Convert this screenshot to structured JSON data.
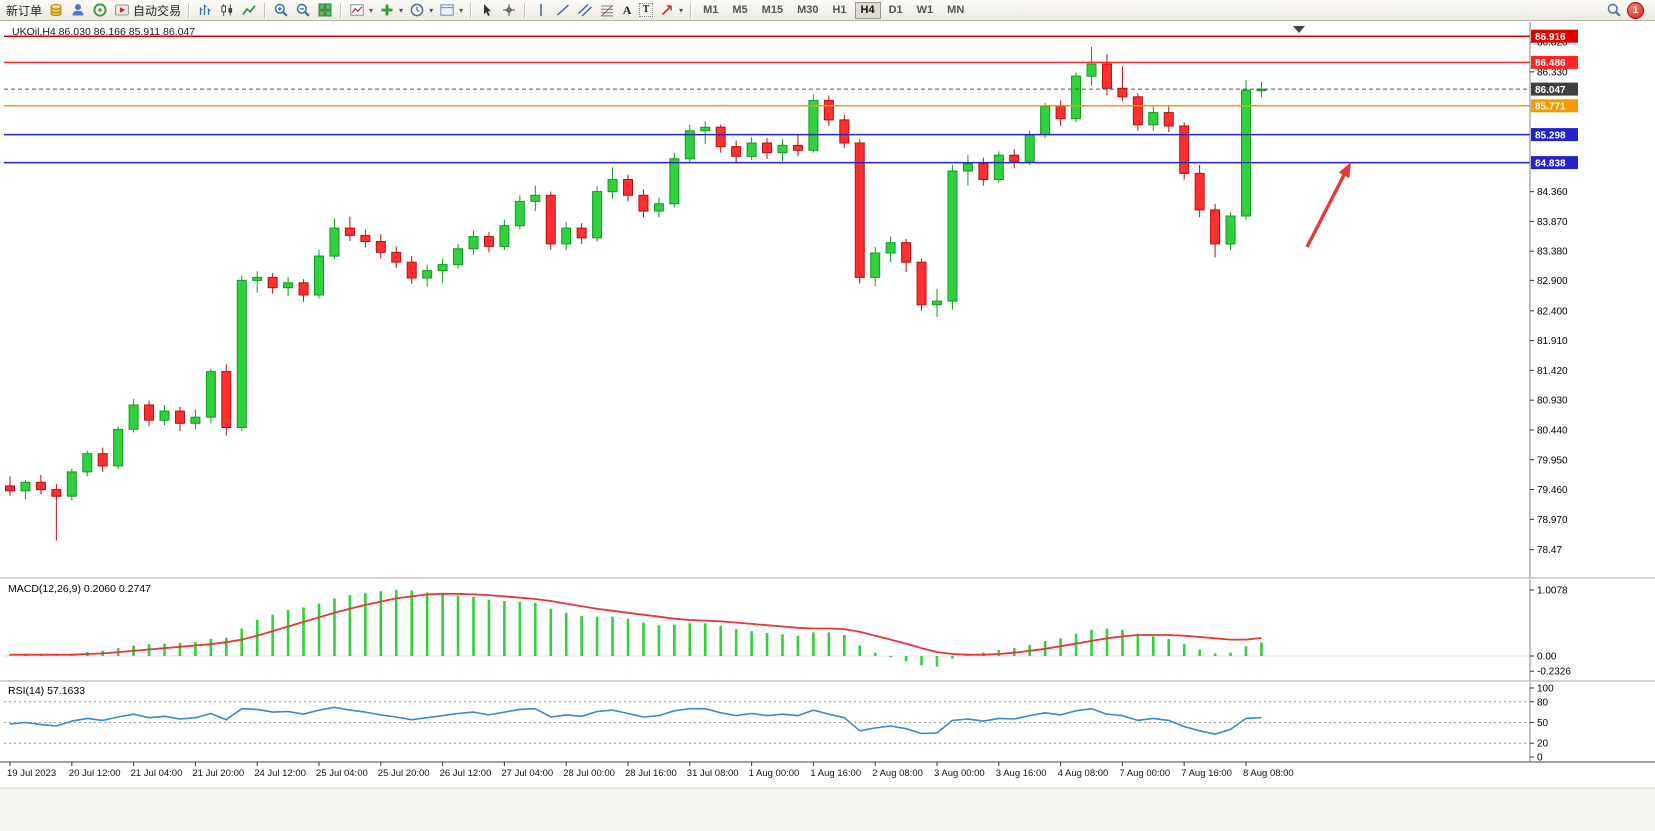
{
  "toolbar": {
    "new_order_label": "新订单",
    "auto_trading_label": "自动交易",
    "text_tool_a": "A",
    "text_tool_t": "T",
    "timeframes": [
      "M1",
      "M5",
      "M15",
      "M30",
      "H1",
      "H4",
      "D1",
      "W1",
      "MN"
    ],
    "active_timeframe": "H4",
    "notification_count": "1"
  },
  "icons": {
    "dropdown_caret": "▾",
    "names": [
      "coins-icon",
      "person-icon",
      "community-icon",
      "auto-trading-icon",
      "bar-chart-icon",
      "candlestick-chart-icon",
      "line-chart-icon",
      "zoom-in-icon",
      "zoom-out-icon",
      "tile-windows-icon",
      "new-chart-icon",
      "plus-icon",
      "clock-icon",
      "template-icon",
      "cursor-icon",
      "crosshair-icon",
      "vertical-line-icon",
      "trendline-icon",
      "channel-icon",
      "fibonacci-icon",
      "arrow-tool-icon",
      "search-icon",
      "notification-badge"
    ]
  },
  "colors": {
    "up": "#2fd13c",
    "up_border": "#129a22",
    "down": "#ff2f2f",
    "down_border": "#b31212",
    "macd_histogram": "#2fd13c",
    "macd_signal": "#e53935",
    "rsi_line": "#3b87d9"
  },
  "chart_data": {
    "type": "candlestick",
    "title": "UKOil,H4 86.030 86.166 85.911 86.047",
    "symbol": "UKOil",
    "period": "H4",
    "x_labels": [
      "19 Jul 2023",
      "20 Jul 12:00",
      "21 Jul 04:00",
      "21 Jul 20:00",
      "24 Jul 12:00",
      "25 Jul 04:00",
      "25 Jul 20:00",
      "26 Jul 12:00",
      "27 Jul 04:00",
      "28 Jul 00:00",
      "28 Jul 16:00",
      "31 Jul 08:00",
      "1 Aug 00:00",
      "1 Aug 16:00",
      "2 Aug 08:00",
      "3 Aug 00:00",
      "3 Aug 16:00",
      "4 Aug 08:00",
      "7 Aug 00:00",
      "7 Aug 16:00",
      "8 Aug 08:00"
    ],
    "bars_per_x_label": 4,
    "y_axis_ticks": [
      "86.820",
      "86.330",
      "84.360",
      "83.870",
      "83.380",
      "82.900",
      "82.400",
      "81.910",
      "81.420",
      "80.930",
      "80.440",
      "79.950",
      "79.460",
      "78.970",
      "78.47"
    ],
    "price_markers": [
      {
        "label": "86.916",
        "price": 86.916,
        "color": "#e00000",
        "current": false
      },
      {
        "label": "86.486",
        "price": 86.486,
        "color": "#ff2626",
        "current": false
      },
      {
        "label": "86.047",
        "price": 86.047,
        "color": "#3f3f3f",
        "current": true
      },
      {
        "label": "85.771",
        "price": 85.771,
        "color": "#f59b00",
        "current": false
      },
      {
        "label": "85.298",
        "price": 85.298,
        "color": "#2323cc",
        "current": false
      },
      {
        "label": "84.838",
        "price": 84.838,
        "color": "#2323cc",
        "current": false
      }
    ],
    "candles_ohlc": [
      [
        79.52,
        79.68,
        79.36,
        79.44
      ],
      [
        79.44,
        79.62,
        79.3,
        79.58
      ],
      [
        79.58,
        79.7,
        79.38,
        79.46
      ],
      [
        79.46,
        79.55,
        78.62,
        79.35
      ],
      [
        79.35,
        79.8,
        79.28,
        79.75
      ],
      [
        79.75,
        80.1,
        79.68,
        80.05
      ],
      [
        80.05,
        80.15,
        79.75,
        79.85
      ],
      [
        79.85,
        80.5,
        79.8,
        80.45
      ],
      [
        80.45,
        80.95,
        80.4,
        80.85
      ],
      [
        80.85,
        80.92,
        80.5,
        80.6
      ],
      [
        80.6,
        80.85,
        80.52,
        80.75
      ],
      [
        80.75,
        80.82,
        80.42,
        80.55
      ],
      [
        80.55,
        80.78,
        80.45,
        80.65
      ],
      [
        80.65,
        81.45,
        80.55,
        81.4
      ],
      [
        81.4,
        81.52,
        80.35,
        80.48
      ],
      [
        80.48,
        82.98,
        80.42,
        82.9
      ],
      [
        82.9,
        83.05,
        82.7,
        82.95
      ],
      [
        82.95,
        83.02,
        82.68,
        82.78
      ],
      [
        82.78,
        82.96,
        82.64,
        82.86
      ],
      [
        82.86,
        82.92,
        82.55,
        82.66
      ],
      [
        82.66,
        83.4,
        82.6,
        83.3
      ],
      [
        83.3,
        83.92,
        83.25,
        83.76
      ],
      [
        83.76,
        83.95,
        83.55,
        83.64
      ],
      [
        83.64,
        83.74,
        83.44,
        83.54
      ],
      [
        83.54,
        83.66,
        83.26,
        83.36
      ],
      [
        83.36,
        83.46,
        83.1,
        83.2
      ],
      [
        83.2,
        83.3,
        82.84,
        82.94
      ],
      [
        82.94,
        83.16,
        82.8,
        83.06
      ],
      [
        83.06,
        83.26,
        82.86,
        83.16
      ],
      [
        83.16,
        83.5,
        83.1,
        83.42
      ],
      [
        83.42,
        83.72,
        83.32,
        83.62
      ],
      [
        83.62,
        83.7,
        83.36,
        83.46
      ],
      [
        83.46,
        83.9,
        83.4,
        83.8
      ],
      [
        83.8,
        84.3,
        83.74,
        84.2
      ],
      [
        84.2,
        84.46,
        84.04,
        84.3
      ],
      [
        84.3,
        84.36,
        83.4,
        83.5
      ],
      [
        83.5,
        83.86,
        83.4,
        83.76
      ],
      [
        83.76,
        83.84,
        83.5,
        83.6
      ],
      [
        83.6,
        84.45,
        83.54,
        84.36
      ],
      [
        84.36,
        84.76,
        84.24,
        84.56
      ],
      [
        84.56,
        84.64,
        84.2,
        84.3
      ],
      [
        84.3,
        84.4,
        83.94,
        84.04
      ],
      [
        84.04,
        84.26,
        83.94,
        84.16
      ],
      [
        84.16,
        85.0,
        84.1,
        84.9
      ],
      [
        84.9,
        85.46,
        84.85,
        85.36
      ],
      [
        85.36,
        85.52,
        85.14,
        85.42
      ],
      [
        85.42,
        85.46,
        85.0,
        85.1
      ],
      [
        85.1,
        85.2,
        84.84,
        84.94
      ],
      [
        84.94,
        85.26,
        84.88,
        85.16
      ],
      [
        85.16,
        85.24,
        84.9,
        85.0
      ],
      [
        85.0,
        85.22,
        84.86,
        85.12
      ],
      [
        85.12,
        85.3,
        84.94,
        85.04
      ],
      [
        85.04,
        85.96,
        85.0,
        85.86
      ],
      [
        85.86,
        85.94,
        85.44,
        85.54
      ],
      [
        85.54,
        85.62,
        85.08,
        85.16
      ],
      [
        85.16,
        85.22,
        82.85,
        82.95
      ],
      [
        82.95,
        83.45,
        82.8,
        83.35
      ],
      [
        83.35,
        83.62,
        83.2,
        83.52
      ],
      [
        83.52,
        83.58,
        83.04,
        83.2
      ],
      [
        83.2,
        83.26,
        82.4,
        82.5
      ],
      [
        82.5,
        82.76,
        82.3,
        82.56
      ],
      [
        82.56,
        84.8,
        82.42,
        84.7
      ],
      [
        84.7,
        84.96,
        84.46,
        84.82
      ],
      [
        84.82,
        84.92,
        84.46,
        84.56
      ],
      [
        84.56,
        85.02,
        84.5,
        84.96
      ],
      [
        84.96,
        85.06,
        84.74,
        84.86
      ],
      [
        84.86,
        85.36,
        84.8,
        85.3
      ],
      [
        85.3,
        85.82,
        85.24,
        85.76
      ],
      [
        85.76,
        85.86,
        85.44,
        85.56
      ],
      [
        85.56,
        86.32,
        85.5,
        86.26
      ],
      [
        86.26,
        86.74,
        86.1,
        86.46
      ],
      [
        86.46,
        86.62,
        85.94,
        86.06
      ],
      [
        86.06,
        86.42,
        85.84,
        85.92
      ],
      [
        85.92,
        85.98,
        85.36,
        85.46
      ],
      [
        85.46,
        85.76,
        85.36,
        85.66
      ],
      [
        85.66,
        85.78,
        85.34,
        85.44
      ],
      [
        85.44,
        85.5,
        84.56,
        84.66
      ],
      [
        84.66,
        84.8,
        83.94,
        84.06
      ],
      [
        84.06,
        84.16,
        83.28,
        83.5
      ],
      [
        83.5,
        84.02,
        83.4,
        83.96
      ],
      [
        83.96,
        86.2,
        83.9,
        86.03
      ],
      [
        86.03,
        86.166,
        85.911,
        86.047
      ]
    ],
    "macd": {
      "label": "MACD(12,26,9) 0.2060 0.2747",
      "scale_labels": [
        "1.0078",
        "0.00",
        "-0.2326"
      ],
      "histogram": [
        0.02,
        0.03,
        0.02,
        0.01,
        0.03,
        0.06,
        0.08,
        0.12,
        0.16,
        0.18,
        0.19,
        0.2,
        0.21,
        0.26,
        0.28,
        0.42,
        0.55,
        0.63,
        0.7,
        0.74,
        0.8,
        0.88,
        0.93,
        0.96,
        0.99,
        1.0078,
        1.0,
        0.97,
        0.94,
        0.92,
        0.9,
        0.86,
        0.84,
        0.83,
        0.81,
        0.72,
        0.66,
        0.61,
        0.6,
        0.6,
        0.57,
        0.51,
        0.47,
        0.48,
        0.5,
        0.5,
        0.46,
        0.41,
        0.38,
        0.35,
        0.33,
        0.31,
        0.36,
        0.36,
        0.32,
        0.16,
        0.05,
        -0.02,
        -0.08,
        -0.14,
        -0.16,
        -0.04,
        0.03,
        0.05,
        0.09,
        0.12,
        0.17,
        0.23,
        0.27,
        0.34,
        0.4,
        0.42,
        0.4,
        0.34,
        0.3,
        0.26,
        0.18,
        0.1,
        0.04,
        0.05,
        0.15,
        0.206
      ],
      "signal": [
        0.02,
        0.02,
        0.02,
        0.02,
        0.02,
        0.03,
        0.04,
        0.06,
        0.08,
        0.1,
        0.12,
        0.14,
        0.16,
        0.18,
        0.21,
        0.25,
        0.31,
        0.38,
        0.45,
        0.52,
        0.59,
        0.66,
        0.72,
        0.78,
        0.83,
        0.88,
        0.91,
        0.94,
        0.95,
        0.95,
        0.94,
        0.93,
        0.91,
        0.89,
        0.87,
        0.84,
        0.8,
        0.76,
        0.72,
        0.69,
        0.66,
        0.63,
        0.6,
        0.57,
        0.55,
        0.54,
        0.53,
        0.51,
        0.49,
        0.47,
        0.45,
        0.43,
        0.42,
        0.42,
        0.41,
        0.37,
        0.31,
        0.25,
        0.19,
        0.12,
        0.06,
        0.03,
        0.02,
        0.02,
        0.03,
        0.05,
        0.08,
        0.11,
        0.15,
        0.19,
        0.23,
        0.27,
        0.3,
        0.32,
        0.32,
        0.32,
        0.31,
        0.29,
        0.27,
        0.25,
        0.25,
        0.2747
      ]
    },
    "rsi": {
      "label": "RSI(14) 57.1633",
      "scale_labels": [
        "100",
        "80",
        "50",
        "20",
        "0"
      ],
      "levels": [
        80,
        50,
        20
      ],
      "values": [
        48,
        50,
        47,
        45,
        52,
        56,
        53,
        58,
        62,
        57,
        59,
        55,
        57,
        63,
        54,
        70,
        69,
        65,
        66,
        62,
        68,
        72,
        68,
        65,
        61,
        58,
        54,
        57,
        60,
        63,
        65,
        61,
        65,
        69,
        70,
        58,
        61,
        59,
        66,
        68,
        63,
        58,
        60,
        67,
        70,
        70,
        64,
        60,
        63,
        60,
        62,
        60,
        68,
        62,
        57,
        38,
        42,
        45,
        41,
        34,
        35,
        53,
        55,
        52,
        56,
        55,
        60,
        64,
        61,
        67,
        70,
        62,
        60,
        53,
        56,
        53,
        44,
        38,
        33,
        40,
        56,
        57.16
      ],
      "last_value": 57.1633
    },
    "arrow_annotation": {
      "direction": "up-right",
      "color": "#e53935"
    }
  }
}
